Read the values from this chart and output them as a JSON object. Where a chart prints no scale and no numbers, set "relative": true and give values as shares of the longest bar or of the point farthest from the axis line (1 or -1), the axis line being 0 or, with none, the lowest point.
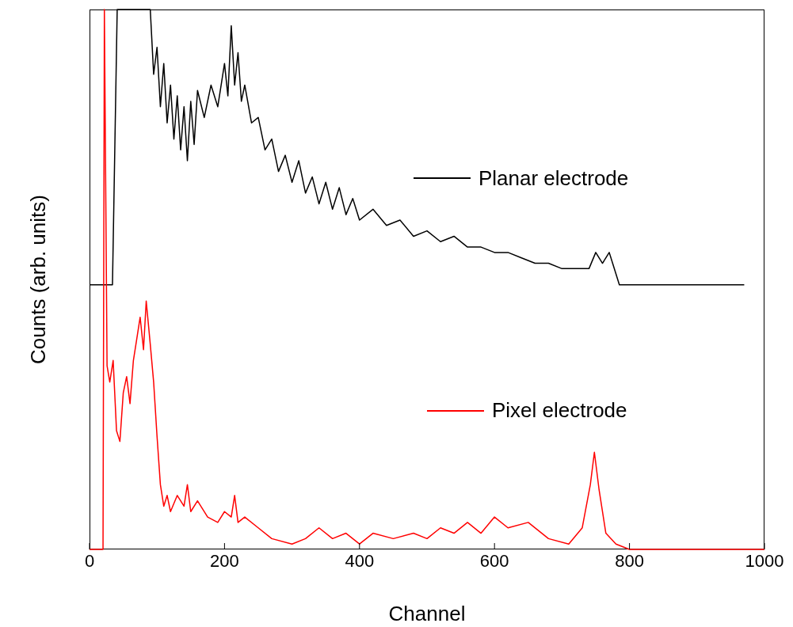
{
  "chart_data": {
    "type": "line",
    "relative": true,
    "legend": "right",
    "xlabel": "Channel",
    "ylabel": "Counts (arb. units)",
    "xlim": [
      0,
      1000
    ],
    "xticks": [
      0,
      200,
      400,
      600,
      800,
      1000
    ],
    "series": [
      {
        "name": "Planar electrode",
        "color": "#000000",
        "x": [
          0,
          32,
          34,
          41,
          90,
          95,
          100,
          105,
          110,
          115,
          120,
          125,
          130,
          135,
          140,
          145,
          150,
          155,
          160,
          170,
          180,
          190,
          200,
          205,
          210,
          215,
          220,
          225,
          230,
          240,
          250,
          260,
          270,
          280,
          290,
          300,
          310,
          320,
          330,
          340,
          350,
          360,
          370,
          380,
          390,
          400,
          420,
          440,
          460,
          480,
          500,
          520,
          540,
          560,
          580,
          600,
          620,
          640,
          660,
          680,
          700,
          720,
          740,
          750,
          760,
          770,
          775,
          785,
          970
        ],
        "values": [
          0.49,
          0.49,
          0.49,
          1,
          1,
          0.88,
          0.93,
          0.82,
          0.9,
          0.79,
          0.86,
          0.76,
          0.84,
          0.74,
          0.82,
          0.72,
          0.83,
          0.75,
          0.85,
          0.8,
          0.86,
          0.82,
          0.9,
          0.84,
          0.97,
          0.86,
          0.92,
          0.83,
          0.86,
          0.79,
          0.8,
          0.74,
          0.76,
          0.7,
          0.73,
          0.68,
          0.72,
          0.66,
          0.69,
          0.64,
          0.68,
          0.63,
          0.67,
          0.62,
          0.65,
          0.61,
          0.63,
          0.6,
          0.61,
          0.58,
          0.59,
          0.57,
          0.58,
          0.56,
          0.56,
          0.55,
          0.55,
          0.54,
          0.53,
          0.53,
          0.52,
          0.52,
          0.52,
          0.55,
          0.53,
          0.55,
          0.53,
          0.49,
          0.49
        ]
      },
      {
        "name": "Pixel electrode",
        "color": "#ff0000",
        "x": [
          0,
          20,
          22,
          26,
          30,
          35,
          40,
          45,
          50,
          55,
          60,
          65,
          70,
          75,
          80,
          84,
          90,
          95,
          100,
          105,
          110,
          115,
          120,
          130,
          140,
          145,
          150,
          160,
          175,
          190,
          200,
          210,
          215,
          220,
          230,
          250,
          270,
          300,
          320,
          340,
          360,
          380,
          400,
          420,
          450,
          480,
          500,
          520,
          540,
          560,
          580,
          600,
          620,
          650,
          680,
          710,
          730,
          742,
          748,
          755,
          765,
          780,
          800,
          1000
        ],
        "values": [
          0,
          0,
          1,
          0.34,
          0.31,
          0.35,
          0.22,
          0.2,
          0.29,
          0.32,
          0.27,
          0.35,
          0.39,
          0.43,
          0.37,
          0.46,
          0.38,
          0.31,
          0.21,
          0.12,
          0.08,
          0.1,
          0.07,
          0.1,
          0.08,
          0.12,
          0.07,
          0.09,
          0.06,
          0.05,
          0.07,
          0.06,
          0.1,
          0.05,
          0.06,
          0.04,
          0.02,
          0.01,
          0.02,
          0.04,
          0.02,
          0.03,
          0.01,
          0.03,
          0.02,
          0.03,
          0.02,
          0.04,
          0.03,
          0.05,
          0.03,
          0.06,
          0.04,
          0.05,
          0.02,
          0.01,
          0.04,
          0.12,
          0.18,
          0.11,
          0.03,
          0.01,
          0,
          0
        ]
      }
    ]
  }
}
